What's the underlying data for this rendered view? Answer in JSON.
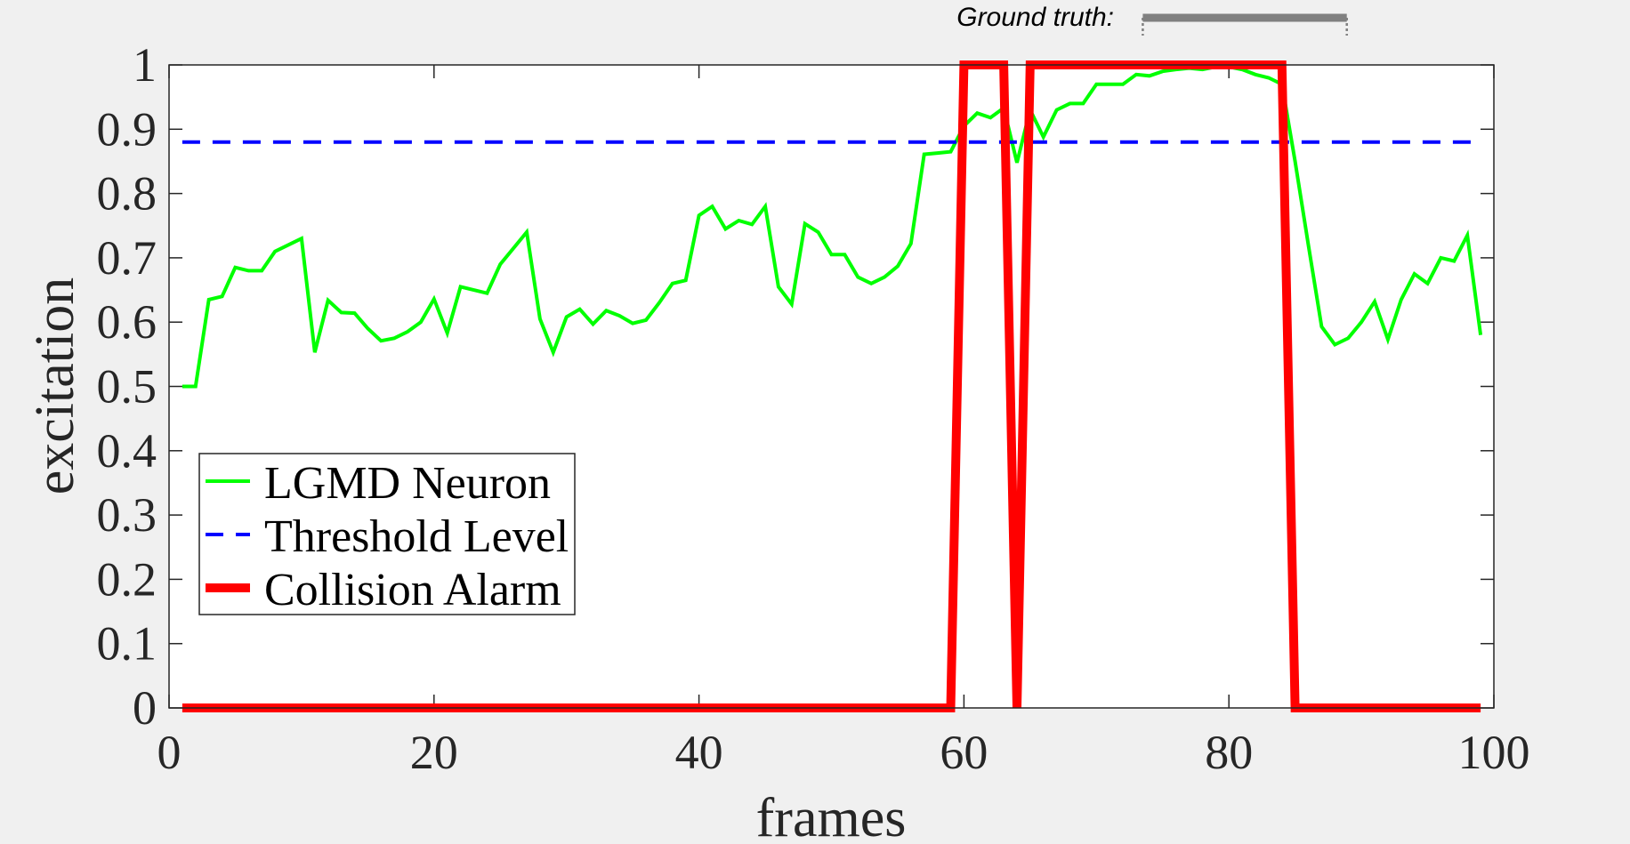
{
  "chart_data": {
    "type": "line",
    "xlabel": "frames",
    "ylabel": "excitation",
    "xlim": [
      0,
      100
    ],
    "ylim": [
      0,
      1
    ],
    "xticks": [
      0,
      20,
      40,
      60,
      80,
      100
    ],
    "xtick_labels": [
      "0",
      "20",
      "40",
      "60",
      "80",
      "100"
    ],
    "yticks": [
      0,
      0.1,
      0.2,
      0.3,
      0.4,
      0.5,
      0.6,
      0.7,
      0.8,
      0.9,
      1
    ],
    "ytick_labels": [
      "0",
      "0.1",
      "0.2",
      "0.3",
      "0.4",
      "0.5",
      "0.6",
      "0.7",
      "0.8",
      "0.9",
      "1"
    ],
    "grid": false,
    "legend_placement": "lower-left",
    "ground_truth": {
      "label": "Ground truth:",
      "x_range": [
        73.5,
        88.9
      ],
      "color": "#808080"
    },
    "series": [
      {
        "name": "LGMD Neuron",
        "color": "#00ff00",
        "style": "solid",
        "x": [
          1,
          2,
          3,
          4,
          5,
          6,
          7,
          8,
          9,
          10,
          11,
          12,
          13,
          14,
          15,
          16,
          17,
          18,
          19,
          20,
          21,
          22,
          23,
          24,
          25,
          26,
          27,
          28,
          29,
          30,
          31,
          32,
          33,
          34,
          35,
          36,
          37,
          38,
          39,
          40,
          41,
          42,
          43,
          44,
          45,
          46,
          47,
          48,
          49,
          50,
          51,
          52,
          53,
          54,
          55,
          56,
          57,
          58,
          59,
          60,
          61,
          62,
          63,
          64,
          65,
          66,
          67,
          68,
          69,
          70,
          71,
          72,
          73,
          74,
          75,
          76,
          77,
          78,
          79,
          80,
          81,
          82,
          83,
          84,
          85,
          86,
          87,
          88,
          89,
          90,
          91,
          92,
          93,
          94,
          95,
          96,
          97,
          98,
          99
        ],
        "y": [
          0.5,
          0.5,
          0.635,
          0.64,
          0.685,
          0.68,
          0.68,
          0.71,
          0.72,
          0.73,
          0.553,
          0.634,
          0.615,
          0.614,
          0.59,
          0.571,
          0.575,
          0.585,
          0.6,
          0.636,
          0.583,
          0.655,
          0.65,
          0.645,
          0.69,
          0.715,
          0.74,
          0.605,
          0.553,
          0.608,
          0.62,
          0.597,
          0.618,
          0.61,
          0.598,
          0.603,
          0.63,
          0.66,
          0.665,
          0.766,
          0.78,
          0.745,
          0.758,
          0.752,
          0.78,
          0.655,
          0.628,
          0.753,
          0.74,
          0.705,
          0.705,
          0.67,
          0.66,
          0.67,
          0.687,
          0.722,
          0.861,
          0.863,
          0.865,
          0.905,
          0.925,
          0.918,
          0.933,
          0.848,
          0.93,
          0.888,
          0.93,
          0.94,
          0.94,
          0.97,
          0.97,
          0.97,
          0.985,
          0.983,
          0.99,
          0.993,
          0.995,
          0.993,
          0.997,
          0.997,
          0.993,
          0.985,
          0.98,
          0.97,
          0.85,
          0.72,
          0.593,
          0.565,
          0.575,
          0.6,
          0.632,
          0.573,
          0.635,
          0.675,
          0.66,
          0.7,
          0.695,
          0.735,
          0.58
        ]
      },
      {
        "name": "Threshold Level",
        "color": "#0000ff",
        "style": "dashed",
        "x": [
          1,
          99
        ],
        "y": [
          0.88,
          0.88
        ]
      },
      {
        "name": "Collision Alarm",
        "color": "#ff0000",
        "style": "solid-thick",
        "x": [
          1,
          59,
          60,
          63,
          64,
          65,
          84,
          85,
          99
        ],
        "y": [
          0,
          0,
          1,
          1,
          0,
          1,
          1,
          0,
          0
        ]
      }
    ]
  }
}
